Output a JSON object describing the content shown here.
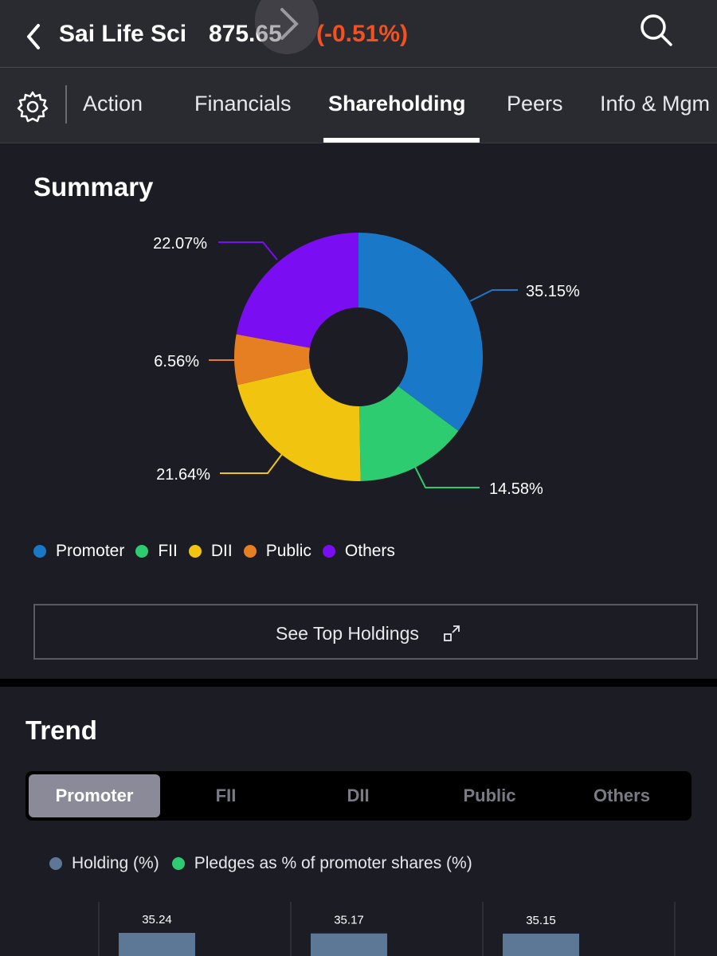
{
  "header": {
    "stock_name": "Sai Life Sci",
    "price": "875.65",
    "change": "(-0.51%)",
    "change_color": "#f4511e",
    "icons": [
      "back-icon",
      "search-icon"
    ]
  },
  "tabs": {
    "items": [
      "Action",
      "Financials",
      "Shareholding",
      "Peers",
      "Info & Mgm"
    ],
    "active": "Shareholding",
    "settings_icon": "gear-icon"
  },
  "summary": {
    "title": "Summary",
    "legend": [
      {
        "label": "Promoter",
        "color": "#1a78c9"
      },
      {
        "label": "FII",
        "color": "#2ecc71"
      },
      {
        "label": "DII",
        "color": "#f1c40f"
      },
      {
        "label": "Public",
        "color": "#e67e22"
      },
      {
        "label": "Others",
        "color": "#7b0df2"
      }
    ],
    "top_holdings_button": "See Top Holdings"
  },
  "trend": {
    "title": "Trend",
    "segments": [
      "Promoter",
      "FII",
      "DII",
      "Public",
      "Others"
    ],
    "active_segment": "Promoter",
    "legend": [
      {
        "label": "Holding (%)",
        "color": "#5d7796"
      },
      {
        "label": "Pledges as % of promoter shares (%)",
        "color": "#2ecc71"
      }
    ]
  },
  "chart_data": [
    {
      "type": "pie",
      "title": "",
      "categories": [
        "Promoter",
        "FII",
        "DII",
        "Public",
        "Others"
      ],
      "values": [
        35.15,
        14.58,
        21.64,
        6.56,
        22.07
      ],
      "labels": [
        "35.15%",
        "14.58%",
        "21.64%",
        "6.56%",
        "22.07%"
      ],
      "colors": [
        "#1a78c9",
        "#2ecc71",
        "#f1c40f",
        "#e67e22",
        "#7b0df2"
      ]
    },
    {
      "type": "bar",
      "title": "",
      "series": [
        {
          "name": "Holding (%)",
          "values": [
            35.24,
            35.17,
            35.15
          ]
        }
      ],
      "value_labels": [
        "35.24",
        "35.17",
        "35.15"
      ],
      "color": "#5d7796"
    }
  ]
}
